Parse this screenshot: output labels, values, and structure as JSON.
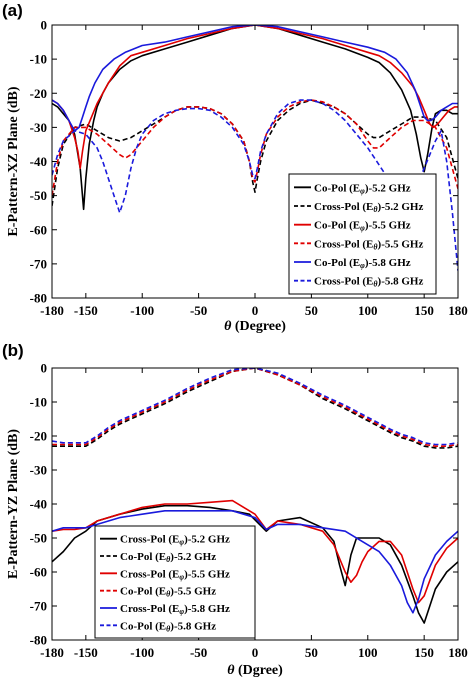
{
  "chart_data": [
    {
      "type": "line",
      "panel_label": "(a)",
      "xlabel": "θ (Degree)",
      "ylabel": "E-Pattern-XZ Plane (dB)",
      "xlim": [
        -180,
        180
      ],
      "ylim": [
        -80,
        0
      ],
      "x_ticks": [
        -180,
        -150,
        -100,
        -50,
        0,
        50,
        100,
        150,
        180
      ],
      "y_ticks": [
        0,
        -10,
        -20,
        -30,
        -40,
        -50,
        -60,
        -70,
        -80
      ],
      "legend": "lower-right",
      "series": [
        {
          "name": "Co-Pol (Eφ)-5.2 GHz",
          "label_main": "Co-Pol (E",
          "label_sub": "φ",
          "label_tail": ")-5.2 GHz",
          "color": "#000000",
          "dash": "solid",
          "x": [
            -180,
            -175,
            -170,
            -165,
            -160,
            -155,
            -152,
            -150,
            -147,
            -143,
            -140,
            -135,
            -130,
            -120,
            -110,
            -100,
            -80,
            -60,
            -40,
            -20,
            0,
            20,
            40,
            60,
            80,
            100,
            110,
            120,
            130,
            138,
            143,
            147,
            150,
            153,
            157,
            160,
            165,
            170,
            175,
            180
          ],
          "y": [
            -23,
            -24,
            -26,
            -28,
            -32,
            -42,
            -54,
            -45,
            -35,
            -28,
            -24,
            -20,
            -17,
            -13,
            -10.5,
            -9,
            -7,
            -5,
            -3,
            -1,
            0,
            -1,
            -3,
            -5,
            -7,
            -9.5,
            -11,
            -14,
            -19,
            -25,
            -32,
            -39,
            -43,
            -38,
            -30,
            -26,
            -25,
            -25,
            -26,
            -26
          ]
        },
        {
          "name": "Cross-Pol (Eθ)-5.2 GHz",
          "label_main": "Cross-Pol (E",
          "label_sub": "θ",
          "label_tail": ")-5.2 GHz",
          "color": "#000000",
          "dash": "dash",
          "x": [
            -180,
            -175,
            -170,
            -160,
            -150,
            -140,
            -130,
            -120,
            -110,
            -100,
            -90,
            -80,
            -70,
            -60,
            -50,
            -40,
            -30,
            -20,
            -10,
            -5,
            -2,
            0,
            2,
            5,
            10,
            20,
            30,
            40,
            50,
            60,
            70,
            80,
            90,
            100,
            105,
            110,
            120,
            130,
            140,
            150,
            160,
            170,
            180
          ],
          "y": [
            -53,
            -42,
            -35,
            -30,
            -29,
            -31,
            -33,
            -34,
            -33,
            -31,
            -29,
            -27,
            -25,
            -24,
            -24,
            -24.5,
            -26,
            -29,
            -34,
            -40,
            -46,
            -49,
            -45,
            -40,
            -34,
            -28,
            -25,
            -23,
            -22,
            -23,
            -24,
            -26,
            -29,
            -32,
            -33,
            -33,
            -31,
            -29,
            -27,
            -27,
            -28,
            -33,
            -45
          ]
        },
        {
          "name": "Co-Pol (Eφ)-5.5 GHz",
          "label_main": "Co-Pol (E",
          "label_sub": "φ",
          "label_tail": ")-5.5 GHz",
          "color": "#e00000",
          "dash": "solid",
          "x": [
            -180,
            -175,
            -170,
            -165,
            -160,
            -157,
            -155,
            -153,
            -150,
            -145,
            -140,
            -130,
            -120,
            -110,
            -100,
            -80,
            -60,
            -40,
            -20,
            0,
            20,
            40,
            60,
            80,
            100,
            110,
            120,
            130,
            140,
            145,
            150,
            155,
            158,
            162,
            167,
            172,
            177,
            180
          ],
          "y": [
            -22,
            -23,
            -25,
            -28,
            -33,
            -37,
            -42,
            -37,
            -31,
            -27,
            -23,
            -17,
            -12,
            -9,
            -8,
            -6,
            -4,
            -2.5,
            -1,
            0,
            -1,
            -2.5,
            -4,
            -6,
            -8,
            -9,
            -11,
            -14,
            -18,
            -21,
            -25,
            -29,
            -30,
            -29,
            -27,
            -25,
            -24,
            -24
          ]
        },
        {
          "name": "Cross-Pol (Eθ)-5.5 GHz",
          "label_main": "Cross-Pol (E",
          "label_sub": "θ",
          "label_tail": ")-5.5 GHz",
          "color": "#e00000",
          "dash": "dash",
          "x": [
            -180,
            -175,
            -170,
            -160,
            -150,
            -140,
            -130,
            -120,
            -115,
            -110,
            -100,
            -90,
            -80,
            -70,
            -60,
            -50,
            -40,
            -30,
            -20,
            -10,
            -5,
            -2,
            0,
            2,
            5,
            10,
            20,
            30,
            40,
            50,
            60,
            70,
            80,
            90,
            100,
            105,
            110,
            120,
            130,
            140,
            150,
            160,
            170,
            180
          ],
          "y": [
            -50,
            -40,
            -34,
            -30,
            -30,
            -32,
            -35,
            -38,
            -39,
            -38,
            -34,
            -30,
            -27,
            -25,
            -24,
            -24,
            -24.5,
            -26,
            -29,
            -34,
            -40,
            -45,
            -46,
            -43,
            -38,
            -32,
            -27,
            -24,
            -22.5,
            -22,
            -22.5,
            -24,
            -26,
            -29,
            -34,
            -36,
            -36,
            -33,
            -30,
            -28,
            -28,
            -30,
            -36,
            -48
          ]
        },
        {
          "name": "Co-Pol (Eφ)-5.8 GHz",
          "label_main": "Co-Pol (E",
          "label_sub": "φ",
          "label_tail": ")-5.8 GHz",
          "color": "#1a1adc",
          "dash": "solid",
          "x": [
            -180,
            -175,
            -170,
            -165,
            -160,
            -156,
            -153,
            -150,
            -147,
            -142,
            -135,
            -125,
            -115,
            -100,
            -80,
            -60,
            -40,
            -20,
            0,
            20,
            40,
            60,
            80,
            100,
            115,
            125,
            135,
            142,
            147,
            150,
            153,
            156,
            160,
            165,
            170,
            175,
            180
          ],
          "y": [
            -22,
            -23,
            -25,
            -28,
            -31,
            -30,
            -27,
            -24,
            -21,
            -17,
            -13,
            -10,
            -8,
            -6,
            -5,
            -3.5,
            -2,
            -0.5,
            0,
            -0.5,
            -2,
            -3.5,
            -5,
            -6.5,
            -8,
            -10,
            -14,
            -19,
            -24,
            -27,
            -28,
            -28,
            -27,
            -25,
            -24,
            -23,
            -23
          ]
        },
        {
          "name": "Cross-Pol (Eθ)-5.8 GHz",
          "label_main": "Cross-Pol (E",
          "label_sub": "θ",
          "label_tail": ")-5.8 GHz",
          "color": "#1a1adc",
          "dash": "dash",
          "x": [
            -180,
            -175,
            -170,
            -160,
            -150,
            -140,
            -135,
            -130,
            -125,
            -120,
            -115,
            -110,
            -105,
            -100,
            -90,
            -80,
            -70,
            -60,
            -50,
            -40,
            -30,
            -20,
            -10,
            -5,
            -2,
            0,
            2,
            5,
            10,
            20,
            30,
            40,
            50,
            60,
            70,
            80,
            90,
            100,
            110,
            120,
            130,
            140,
            150,
            160,
            165,
            170,
            175,
            180
          ],
          "y": [
            -44,
            -38,
            -34,
            -31,
            -32,
            -36,
            -40,
            -45,
            -50,
            -55,
            -50,
            -42,
            -36,
            -32,
            -28,
            -26,
            -25,
            -24.5,
            -24.5,
            -25,
            -27,
            -30,
            -35,
            -40,
            -44,
            -45,
            -42,
            -37,
            -32,
            -26,
            -23,
            -22,
            -22,
            -23,
            -25,
            -28,
            -32,
            -36,
            -41,
            -46,
            -50,
            -50,
            -42,
            -34,
            -31,
            -40,
            -55,
            -72
          ]
        }
      ]
    },
    {
      "type": "line",
      "panel_label": "(b)",
      "xlabel": "θ (Dgree)",
      "ylabel": "E-Pattern-YZ Plane (dB)",
      "xlim": [
        -180,
        180
      ],
      "ylim": [
        -80,
        0
      ],
      "x_ticks": [
        -180,
        -150,
        -100,
        -50,
        0,
        50,
        100,
        150,
        180
      ],
      "y_ticks": [
        0,
        -10,
        -20,
        -30,
        -40,
        -50,
        -60,
        -70,
        -80
      ],
      "legend": "lower-left",
      "series": [
        {
          "name": "Cross-Pol (Eφ)-5.2 GHz",
          "label_main": "Cross-Pol (E",
          "label_sub": "φ",
          "label_tail": ")-5.2 GHz",
          "color": "#000000",
          "dash": "solid",
          "x": [
            -180,
            -170,
            -160,
            -150,
            -140,
            -120,
            -100,
            -80,
            -60,
            -40,
            -20,
            -5,
            10,
            20,
            40,
            60,
            70,
            75,
            80,
            85,
            90,
            100,
            110,
            120,
            130,
            140,
            145,
            150,
            155,
            160,
            170,
            180
          ],
          "y": [
            -57,
            -54,
            -50,
            -48,
            -45,
            -43,
            -41.5,
            -40.5,
            -40.5,
            -41,
            -42,
            -43,
            -48,
            -45,
            -44,
            -47,
            -51,
            -58,
            -64,
            -55,
            -50,
            -50,
            -50,
            -52,
            -58,
            -67,
            -72,
            -75,
            -70,
            -65,
            -60,
            -57
          ]
        },
        {
          "name": "Co-Pol (Eθ)-5.2 GHz",
          "label_main": "Co-Pol (E",
          "label_sub": "θ",
          "label_tail": ")-5.2 GHz",
          "color": "#000000",
          "dash": "dash",
          "x": [
            -180,
            -170,
            -160,
            -150,
            -140,
            -130,
            -120,
            -100,
            -80,
            -60,
            -40,
            -20,
            0,
            20,
            40,
            60,
            80,
            100,
            120,
            130,
            140,
            150,
            160,
            170,
            180
          ],
          "y": [
            -23,
            -23,
            -23,
            -23,
            -21,
            -18.5,
            -16.5,
            -13.5,
            -10.5,
            -7,
            -4,
            -1,
            0,
            -2,
            -5,
            -9,
            -12,
            -15.5,
            -19,
            -20.5,
            -21.5,
            -23,
            -23.5,
            -23.5,
            -23
          ]
        },
        {
          "name": "Cross-Pol (Eφ)-5.5 GHz",
          "label_main": "Cross-Pol (E",
          "label_sub": "φ",
          "label_tail": ")-5.5 GHz",
          "color": "#e00000",
          "dash": "solid",
          "x": [
            -180,
            -170,
            -160,
            -150,
            -140,
            -120,
            -100,
            -80,
            -60,
            -40,
            -20,
            0,
            10,
            20,
            40,
            60,
            70,
            80,
            85,
            90,
            95,
            100,
            110,
            120,
            130,
            140,
            145,
            150,
            160,
            170,
            180
          ],
          "y": [
            -48,
            -47.5,
            -47.5,
            -47,
            -45,
            -43,
            -41,
            -40,
            -40,
            -39.5,
            -39,
            -43,
            -47.5,
            -45,
            -46,
            -48,
            -52,
            -60,
            -63,
            -61,
            -57,
            -54,
            -51,
            -51,
            -55,
            -65,
            -69,
            -67,
            -58,
            -53,
            -50
          ]
        },
        {
          "name": "Co-Pol (Eθ)-5.5 GHz",
          "label_main": "Co-Pol (E",
          "label_sub": "θ",
          "label_tail": ")-5.5 GHz",
          "color": "#e00000",
          "dash": "dash",
          "x": [
            -180,
            -170,
            -160,
            -150,
            -140,
            -130,
            -120,
            -100,
            -80,
            -60,
            -40,
            -20,
            0,
            20,
            40,
            60,
            80,
            100,
            120,
            130,
            140,
            150,
            160,
            170,
            180
          ],
          "y": [
            -22.5,
            -22.5,
            -22.5,
            -22.5,
            -20.5,
            -18,
            -16,
            -13,
            -10,
            -6.5,
            -3.5,
            -1,
            0,
            -2,
            -5,
            -8.5,
            -11.5,
            -15,
            -18.5,
            -20,
            -21,
            -22.5,
            -23,
            -23,
            -22.5
          ]
        },
        {
          "name": "Cross-Pol (Eφ)-5.8 GHz",
          "label_main": "Cross-Pol (E",
          "label_sub": "φ",
          "label_tail": ")-5.8 GHz",
          "color": "#1a1adc",
          "dash": "solid",
          "x": [
            -180,
            -170,
            -160,
            -150,
            -140,
            -120,
            -100,
            -80,
            -60,
            -40,
            -20,
            0,
            10,
            20,
            40,
            60,
            80,
            100,
            110,
            120,
            130,
            135,
            140,
            145,
            150,
            160,
            170,
            180
          ],
          "y": [
            -48,
            -47,
            -47,
            -47,
            -46,
            -44,
            -43,
            -42,
            -42,
            -42,
            -42,
            -44,
            -47.5,
            -46,
            -46,
            -47,
            -48,
            -52,
            -54,
            -58,
            -64,
            -69,
            -72,
            -68,
            -62,
            -55,
            -51,
            -48
          ]
        },
        {
          "name": "Co-Pol (Eθ)-5.8 GHz",
          "label_main": "Co-Pol (E",
          "label_sub": "θ",
          "label_tail": ")-5.8 GHz",
          "color": "#1a1adc",
          "dash": "dash",
          "x": [
            -180,
            -170,
            -160,
            -150,
            -140,
            -130,
            -120,
            -100,
            -80,
            -60,
            -40,
            -20,
            0,
            20,
            40,
            60,
            80,
            100,
            120,
            130,
            140,
            150,
            160,
            170,
            180
          ],
          "y": [
            -21.5,
            -22,
            -22,
            -22,
            -20,
            -17.5,
            -15.5,
            -12.5,
            -9.5,
            -6,
            -3,
            -0.5,
            0,
            -1.5,
            -4.5,
            -8,
            -11,
            -14.5,
            -18,
            -19.5,
            -20.5,
            -22,
            -22.5,
            -22.5,
            -22
          ]
        }
      ]
    }
  ]
}
